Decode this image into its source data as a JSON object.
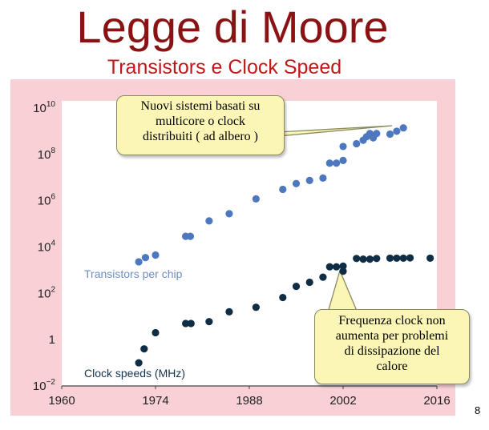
{
  "slide": {
    "title": "Legge di Moore",
    "subtitle": "Transistors e Clock Speed",
    "page_number": "8"
  },
  "callouts": {
    "top": [
      "Nuovi sistemi basati su",
      "multicore o clock",
      "distribuiti ( ad albero )"
    ],
    "bottom": [
      "Frequenza clock non",
      "aumenta per problemi",
      "di dissipazione del",
      "calore"
    ]
  },
  "colors": {
    "frame": "#f8d0d5",
    "plot_background": "#ffffff",
    "transistors": "#4d78bf",
    "clock": "#0f2d44",
    "callout_fill": "#fbf6b6"
  },
  "chart_data": {
    "type": "scatter",
    "x_scale": "linear",
    "y_scale": "log",
    "xlim": [
      1960,
      2016
    ],
    "ylim": [
      0.01,
      10000000000
    ],
    "x_ticks": [
      "1960",
      "1974",
      "1988",
      "2002",
      "2016"
    ],
    "y_ticks": [
      {
        "base": "10",
        "exp": "10"
      },
      {
        "base": "10",
        "exp": "8"
      },
      {
        "base": "10",
        "exp": "6"
      },
      {
        "base": "10",
        "exp": "4"
      },
      {
        "base": "10",
        "exp": "2"
      },
      {
        "base": "1",
        "exp": ""
      },
      {
        "base": "10",
        "exp": "−2"
      }
    ],
    "grid": false,
    "series": [
      {
        "name": "Transistors per chip",
        "points": [
          [
            1971.5,
            2300
          ],
          [
            1972.5,
            3500
          ],
          [
            1974,
            4500
          ],
          [
            1978.5,
            29000
          ],
          [
            1979.2,
            29000
          ],
          [
            1982,
            134000
          ],
          [
            1985,
            275000
          ],
          [
            1989,
            1200000
          ],
          [
            1993,
            3100000
          ],
          [
            1995,
            5500000
          ],
          [
            1997,
            7500000
          ],
          [
            1999,
            9500000
          ],
          [
            2000,
            42000000
          ],
          [
            2001,
            42000000
          ],
          [
            2002,
            55000000
          ],
          [
            2002,
            220000000
          ],
          [
            2004,
            290000000
          ],
          [
            2005,
            410000000
          ],
          [
            2005.5,
            580000000
          ],
          [
            2006,
            800000000
          ],
          [
            2006.5,
            520000000
          ],
          [
            2007,
            800000000
          ],
          [
            2009,
            750000000
          ],
          [
            2010,
            1000000000
          ],
          [
            2011,
            1400000000
          ]
        ]
      },
      {
        "name": "Clock speeds (MHz)",
        "points": [
          [
            1971.5,
            0.1
          ],
          [
            1972.3,
            0.4
          ],
          [
            1974,
            2
          ],
          [
            1978.5,
            5
          ],
          [
            1979.3,
            5
          ],
          [
            1982,
            6
          ],
          [
            1985,
            16
          ],
          [
            1989,
            25
          ],
          [
            1993,
            66
          ],
          [
            1995,
            200
          ],
          [
            1997,
            300
          ],
          [
            1999,
            500
          ],
          [
            2000,
            1400
          ],
          [
            2001,
            1400
          ],
          [
            2002,
            1500
          ],
          [
            2002,
            900
          ],
          [
            2004,
            3200
          ],
          [
            2005,
            3000
          ],
          [
            2006,
            3000
          ],
          [
            2007,
            3200
          ],
          [
            2009,
            3300
          ],
          [
            2010,
            3300
          ],
          [
            2011,
            3300
          ],
          [
            2012,
            3400
          ],
          [
            2015,
            3300
          ]
        ]
      }
    ]
  }
}
